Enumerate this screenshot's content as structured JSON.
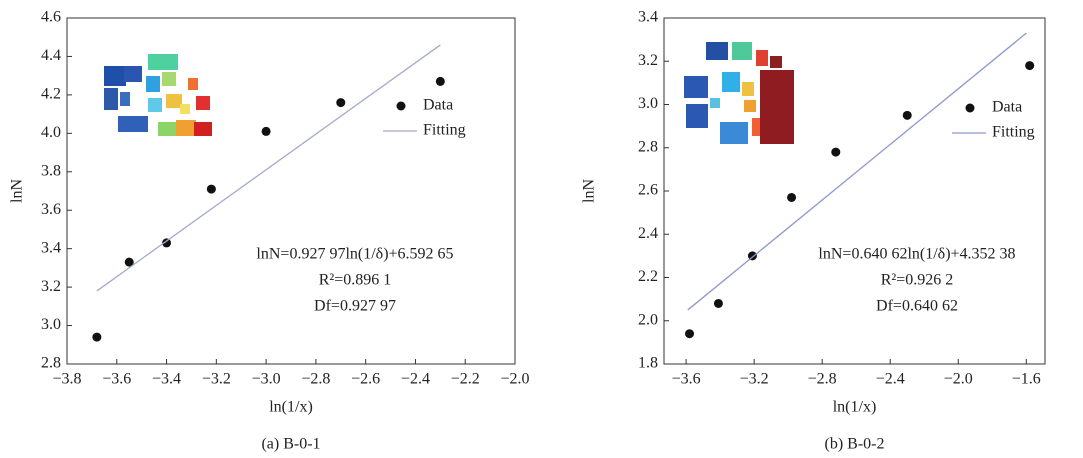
{
  "chart_data": [
    {
      "type": "scatter",
      "caption": "(a) B-0-1",
      "x_label": "ln(1/x)",
      "y_label": "lnN",
      "annotations": [
        "lnN=0.927 97ln(1/δ)+6.592 65",
        "R²=0.896 1",
        "Df=0.927 97"
      ],
      "xlim": [
        -3.8,
        -2.0
      ],
      "ylim": [
        2.8,
        4.6
      ],
      "xticks": [
        {
          "value": -3.8,
          "label": "−3.8"
        },
        {
          "value": -3.6,
          "label": "−3.6"
        },
        {
          "value": -3.4,
          "label": "−3.4"
        },
        {
          "value": -3.2,
          "label": "−3.2"
        },
        {
          "value": -3.0,
          "label": "−3.0"
        },
        {
          "value": -2.8,
          "label": "−2.8"
        },
        {
          "value": -2.6,
          "label": "−2.6"
        },
        {
          "value": -2.4,
          "label": "−2.4"
        },
        {
          "value": -2.2,
          "label": "−2.2"
        },
        {
          "value": -2.0,
          "label": "−2.0"
        }
      ],
      "yticks": [
        2.8,
        {
          "value": 3.0,
          "label": "3.0"
        },
        3.2,
        3.4,
        3.6,
        3.8,
        {
          "value": 4.0,
          "label": "4.0"
        },
        4.2,
        4.4,
        4.6
      ],
      "series": [
        {
          "name": "Data",
          "mode": "markers",
          "color": "#111111",
          "x": [
            -3.68,
            -3.55,
            -3.4,
            -3.22,
            -3.0,
            -2.7,
            -2.3
          ],
          "values": [
            2.94,
            3.33,
            3.43,
            3.71,
            4.01,
            4.16,
            4.27
          ]
        },
        {
          "name": "Fitting",
          "mode": "line",
          "color": "#a3abcb",
          "x": [
            -3.68,
            -2.3
          ],
          "values": [
            3.18,
            4.46
          ]
        }
      ]
    },
    {
      "type": "scatter",
      "caption": "(b) B-0-2",
      "x_label": "ln(1/x)",
      "y_label": "lnN",
      "annotations": [
        "lnN=0.640 62ln(1/δ)+4.352 38",
        "R²=0.926 2",
        "Df=0.640 62"
      ],
      "xlim": [
        -3.73,
        -1.49
      ],
      "ylim": [
        1.8,
        3.4
      ],
      "xticks": [
        {
          "value": -3.6,
          "label": "−3.6"
        },
        {
          "value": -3.2,
          "label": "−3.2"
        },
        {
          "value": -2.8,
          "label": "−2.8"
        },
        {
          "value": -2.4,
          "label": "−2.4"
        },
        {
          "value": -2.0,
          "label": "−2.0"
        },
        {
          "value": -1.6,
          "label": "−1.6"
        }
      ],
      "yticks": [
        1.8,
        {
          "value": 2.0,
          "label": "2.0"
        },
        2.2,
        2.4,
        2.6,
        2.8,
        {
          "value": 3.0,
          "label": "3.0"
        },
        3.2,
        3.4
      ],
      "series": [
        {
          "name": "Data",
          "mode": "markers",
          "color": "#111111",
          "x": [
            -3.58,
            -3.41,
            -3.21,
            -2.98,
            -2.72,
            -2.3,
            -1.58
          ],
          "values": [
            1.94,
            2.08,
            2.3,
            2.57,
            2.78,
            2.95,
            3.18
          ]
        },
        {
          "name": "Fitting",
          "mode": "line",
          "color": "#8c97cc",
          "x": [
            -3.59,
            -1.6
          ],
          "values": [
            2.05,
            3.33
          ]
        }
      ]
    }
  ]
}
